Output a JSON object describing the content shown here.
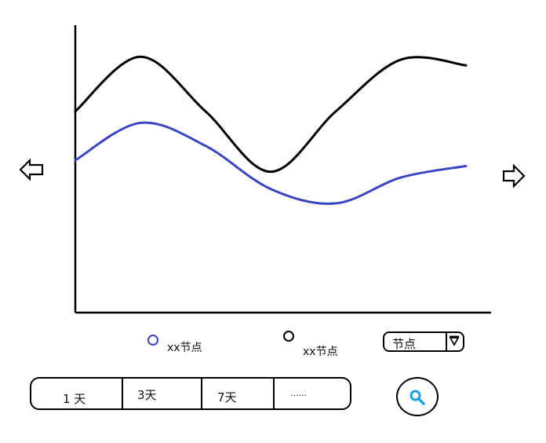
{
  "chart_data": {
    "type": "line",
    "series": [
      {
        "name": "xx节点",
        "color": "#000000",
        "values": [
          0.7,
          0.89,
          0.7,
          0.49,
          0.7,
          0.88,
          0.86
        ]
      },
      {
        "name": "xx节点",
        "color": "#3b45c4",
        "values": [
          0.53,
          0.66,
          0.58,
          0.43,
          0.38,
          0.47,
          0.51
        ]
      }
    ],
    "grid": false,
    "legend_position": "bottom"
  },
  "nav": {
    "prev_icon": "arrow-left-icon",
    "next_icon": "arrow-right-icon"
  },
  "legend": [
    {
      "label": "xx节点",
      "color": "#3b45c4"
    },
    {
      "label": "xx节点",
      "color": "#000000"
    }
  ],
  "node_select": {
    "value": "节点",
    "icon": "dropdown-caret-icon"
  },
  "range": {
    "options": [
      "1 天",
      "3天",
      "7天",
      "......"
    ]
  },
  "search": {
    "icon": "search-icon",
    "color": "#1aa0e6"
  }
}
